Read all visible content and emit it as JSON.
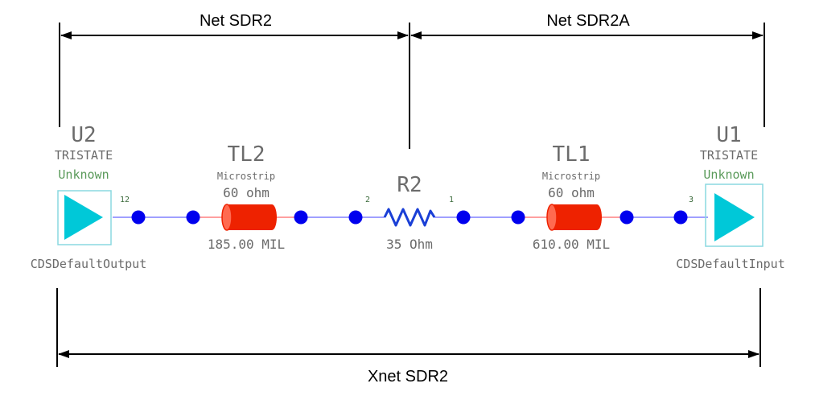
{
  "nets": {
    "sdr2": "Net SDR2",
    "sdr2a": "Net SDR2A",
    "xnet": "Xnet SDR2"
  },
  "u2": {
    "ref": "U2",
    "model": "TRISTATE",
    "state": "Unknown",
    "buffer": "CDSDefaultOutput",
    "pin": "12"
  },
  "tl2": {
    "ref": "TL2",
    "type": "Microstrip",
    "impedance": "60 ohm",
    "length": "185.00 MIL"
  },
  "r2": {
    "ref": "R2",
    "value": "35 Ohm",
    "pin_left": "2",
    "pin_right": "1"
  },
  "tl1": {
    "ref": "TL1",
    "type": "Microstrip",
    "impedance": "60 ohm",
    "length": "610.00 MIL"
  },
  "u1": {
    "ref": "U1",
    "model": "TRISTATE",
    "state": "Unknown",
    "buffer": "CDSDefaultInput",
    "pin": "3"
  },
  "colors": {
    "wire": "#8080ff",
    "node": "#0000ee",
    "tline": "#ee2200",
    "tline_lead": "#ff8080",
    "resistor": "#1a3fd6",
    "buffer_fill": "#00c8d8",
    "buffer_box": "#8ad8e0"
  }
}
